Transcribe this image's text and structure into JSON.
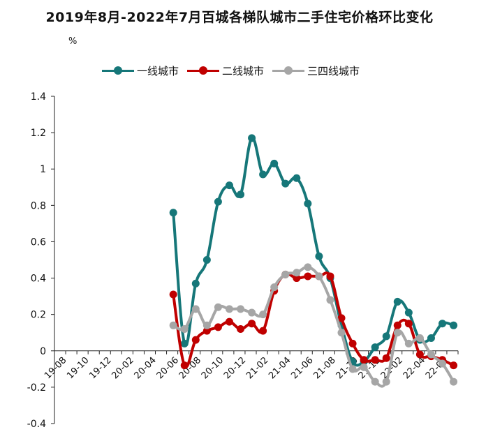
{
  "chart_data": {
    "type": "line",
    "title": "2019年8月-2022年7月百城各梯队城市二手住宅价格环比变化",
    "ylabel": "%",
    "ylim": [
      -0.4,
      1.4
    ],
    "yticks": [
      "1.4",
      "1.2",
      "1",
      "0.8",
      "0.6",
      "0.4",
      "0.2",
      "0",
      "-0.2",
      "-0.4"
    ],
    "x": [
      "19-08",
      "19-09",
      "19-10",
      "19-11",
      "19-12",
      "20-01",
      "20-02",
      "20-03",
      "20-04",
      "20-05",
      "20-06",
      "20-07",
      "20-08",
      "20-09",
      "20-10",
      "20-11",
      "20-12",
      "21-01",
      "21-02",
      "21-03",
      "21-04",
      "21-05",
      "21-06",
      "21-07",
      "21-08",
      "21-09",
      "21-10",
      "21-11",
      "21-12",
      "22-01",
      "22-02",
      "22-03",
      "22-04",
      "22-05",
      "22-06",
      "22-07"
    ],
    "xtick_labels": [
      "19-08",
      "19-10",
      "19-12",
      "20-02",
      "20-04",
      "20-06",
      "20-08",
      "20-10",
      "20-12",
      "21-02",
      "21-04",
      "21-06",
      "21-08",
      "21-10",
      "21-12",
      "22-02",
      "22-04",
      "22-06"
    ],
    "legend_position": "top",
    "grid": false,
    "series": [
      {
        "name": "一线城市",
        "color": "#167779",
        "values": [
          null,
          null,
          null,
          null,
          null,
          null,
          null,
          null,
          null,
          null,
          0.76,
          0.04,
          0.37,
          0.5,
          0.82,
          0.91,
          0.86,
          1.17,
          0.97,
          1.03,
          0.92,
          0.95,
          0.81,
          0.52,
          0.4,
          0.14,
          -0.06,
          -0.06,
          0.02,
          0.08,
          0.27,
          0.21,
          0.06,
          0.07,
          0.15,
          0.14
        ]
      },
      {
        "name": "二线城市",
        "color": "#c00000",
        "values": [
          null,
          null,
          null,
          null,
          null,
          null,
          null,
          null,
          null,
          null,
          0.31,
          -0.08,
          0.06,
          0.11,
          0.13,
          0.16,
          0.12,
          0.15,
          0.11,
          0.33,
          0.42,
          0.4,
          0.41,
          0.41,
          0.41,
          0.18,
          0.04,
          -0.05,
          -0.05,
          -0.04,
          0.14,
          0.15,
          -0.02,
          -0.03,
          -0.05,
          -0.08
        ]
      },
      {
        "name": "三四线城市",
        "color": "#a6a6a6",
        "values": [
          null,
          null,
          null,
          null,
          null,
          null,
          null,
          null,
          null,
          null,
          0.14,
          0.12,
          0.23,
          0.14,
          0.24,
          0.23,
          0.23,
          0.21,
          0.2,
          0.35,
          0.42,
          0.43,
          0.46,
          0.41,
          0.28,
          0.1,
          -0.1,
          -0.09,
          -0.17,
          -0.17,
          0.1,
          0.04,
          0.07,
          -0.02,
          -0.07,
          -0.17
        ]
      }
    ]
  }
}
